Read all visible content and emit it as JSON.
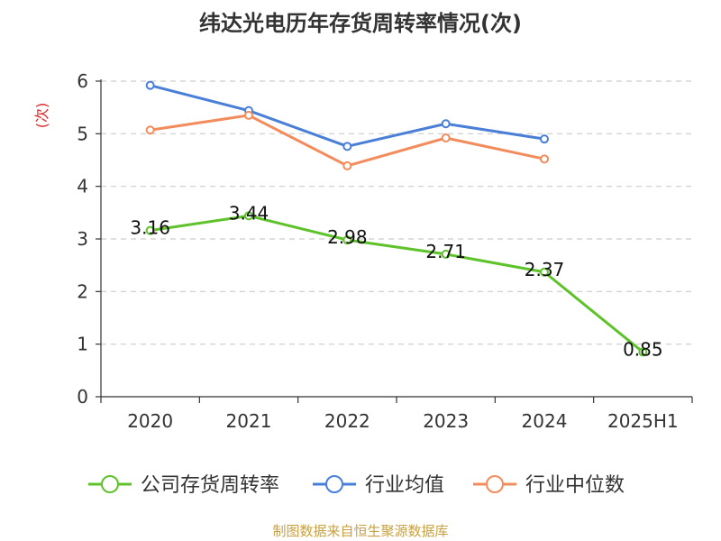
{
  "title": "纬达光电历年存货周转率情况(次)",
  "source": "制图数据来自恒生聚源数据库",
  "chart_data": {
    "type": "line",
    "title": "纬达光电历年存货周转率情况(次)",
    "ylabel": "(次)",
    "xlabel": "",
    "categories": [
      "2020",
      "2021",
      "2022",
      "2023",
      "2024",
      "2025H1"
    ],
    "ylim": [
      0,
      6
    ],
    "yticks": [
      0,
      1,
      2,
      3,
      4,
      5,
      6
    ],
    "grid": true,
    "legend_position": "bottom",
    "series": [
      {
        "name": "公司存货周转率",
        "color": "#5ec22a",
        "values": [
          3.16,
          3.44,
          2.98,
          2.71,
          2.37,
          0.85
        ],
        "show_labels": true
      },
      {
        "name": "行业均值",
        "color": "#4a7fd8",
        "values": [
          5.92,
          5.44,
          4.76,
          5.19,
          4.9,
          null
        ],
        "show_labels": false
      },
      {
        "name": "行业中位数",
        "color": "#f28c5c",
        "values": [
          5.07,
          5.35,
          4.39,
          4.92,
          4.52,
          null
        ],
        "show_labels": false
      }
    ]
  }
}
